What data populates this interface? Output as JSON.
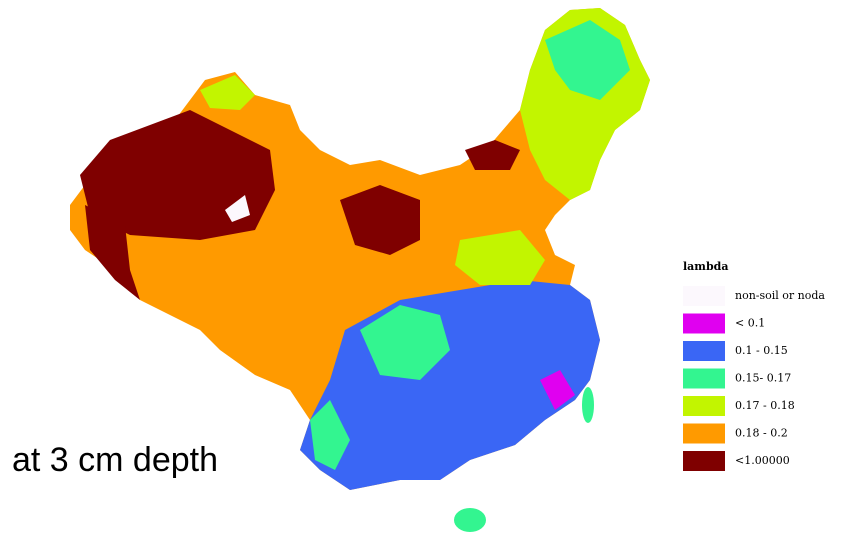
{
  "map": {
    "caption": "at 3 cm depth",
    "legend": {
      "title": "lambda",
      "items": [
        {
          "label": "non-soil or noda",
          "color": "#fcf8fd"
        },
        {
          "label": "< 0.1",
          "color": "#e000f0"
        },
        {
          "label": "0.1 - 0.15",
          "color": "#3a66f5"
        },
        {
          "label": "0.15- 0.17",
          "color": "#33f590"
        },
        {
          "label": "0.17 - 0.18",
          "color": "#c2f500"
        },
        {
          "label": "0.18 - 0.2",
          "color": "#ff9a00"
        },
        {
          "label": "<1.00000",
          "color": "#7f0000"
        }
      ]
    }
  }
}
